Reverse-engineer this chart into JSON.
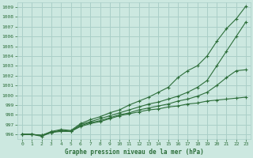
{
  "title": "Graphe pression niveau de la mer (hPa)",
  "xlim": [
    -0.5,
    23.5
  ],
  "ylim": [
    995.5,
    1009.5
  ],
  "yticks": [
    996,
    997,
    998,
    999,
    1000,
    1001,
    1002,
    1003,
    1004,
    1005,
    1006,
    1007,
    1008,
    1009
  ],
  "xticks": [
    0,
    1,
    2,
    3,
    4,
    5,
    6,
    7,
    8,
    9,
    10,
    11,
    12,
    13,
    14,
    15,
    16,
    17,
    18,
    19,
    20,
    21,
    22,
    23
  ],
  "bg_color": "#cce8e0",
  "grid_color": "#aacfc8",
  "line_color": "#2d6e3a",
  "series": [
    [
      996.0,
      996.0,
      995.8,
      996.2,
      996.3,
      996.3,
      996.8,
      997.1,
      997.3,
      997.6,
      997.9,
      998.1,
      998.3,
      998.5,
      998.6,
      998.8,
      998.9,
      999.1,
      999.2,
      999.4,
      999.5,
      999.6,
      999.7,
      999.8
    ],
    [
      996.0,
      996.0,
      995.9,
      996.2,
      996.4,
      996.3,
      996.9,
      997.2,
      997.4,
      997.7,
      998.0,
      998.2,
      998.5,
      998.7,
      998.9,
      999.1,
      999.4,
      999.6,
      999.9,
      1000.3,
      1001.0,
      1001.8,
      1002.5,
      1002.6
    ],
    [
      996.0,
      996.0,
      995.9,
      996.2,
      996.4,
      996.3,
      997.0,
      997.3,
      997.6,
      997.9,
      998.2,
      998.5,
      998.8,
      999.1,
      999.3,
      999.6,
      999.9,
      1000.3,
      1000.8,
      1001.5,
      1003.0,
      1004.5,
      1006.0,
      1007.5
    ],
    [
      996.0,
      996.0,
      995.9,
      996.3,
      996.5,
      996.4,
      997.1,
      997.5,
      997.8,
      998.2,
      998.5,
      999.0,
      999.4,
      999.8,
      1000.3,
      1000.8,
      1001.8,
      1002.5,
      1003.0,
      1004.0,
      1005.5,
      1006.8,
      1007.8,
      1009.1
    ]
  ]
}
